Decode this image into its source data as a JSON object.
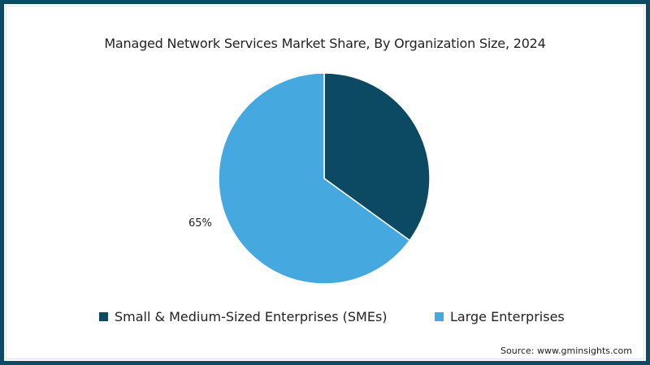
{
  "chart_data": {
    "type": "pie",
    "title": "Managed Network Services Market Share, By Organization Size, 2024",
    "categories": [
      "Small & Medium-Sized Enterprises (SMEs)",
      "Large Enterprises"
    ],
    "values": [
      35,
      65
    ],
    "colors": [
      "#0b4a62",
      "#45a8df"
    ],
    "data_labels": [
      {
        "category": "Large Enterprises",
        "text": "65%"
      }
    ],
    "start_angle_deg": 0,
    "direction": "clockwise",
    "legend_position": "bottom"
  },
  "header": {
    "title": "Managed Network Services Market Share, By Organization Size, 2024"
  },
  "labels": {
    "large_pct": "65%"
  },
  "legend": {
    "items": [
      {
        "label": "Small & Medium-Sized Enterprises (SMEs)",
        "color": "#0b4a62"
      },
      {
        "label": "Large Enterprises",
        "color": "#45a8df"
      }
    ]
  },
  "footer": {
    "source": "Source: www.gminsights.com"
  },
  "theme": {
    "border": "#0d4a63"
  }
}
